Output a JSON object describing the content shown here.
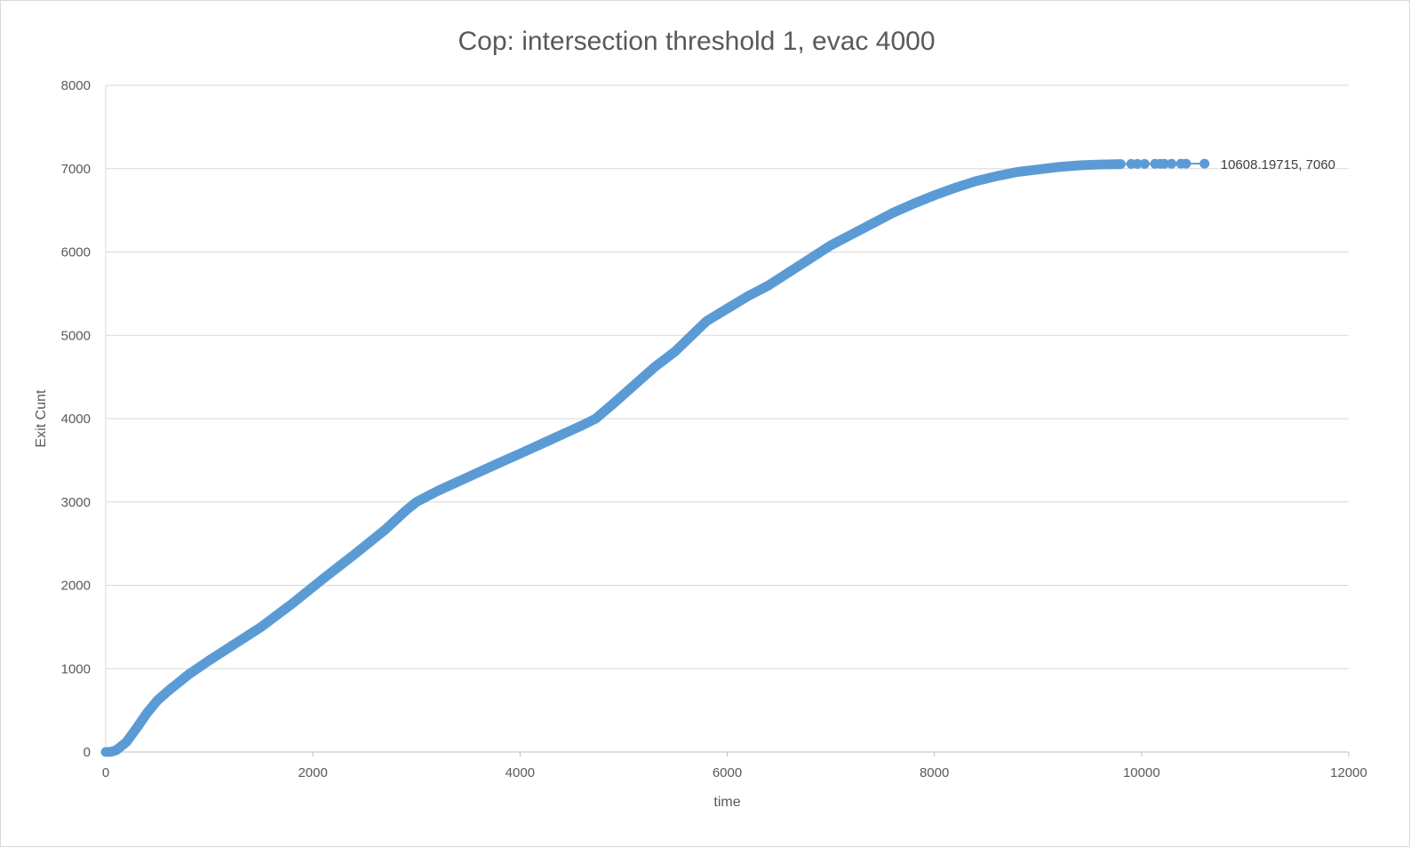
{
  "chart_data": {
    "type": "scatter",
    "title": "Cop: intersection threshold 1, evac 4000",
    "xlabel": "time",
    "ylabel": "Exit Cunt",
    "xlim": [
      0,
      12000
    ],
    "ylim": [
      0,
      8000
    ],
    "x_ticks": [
      0,
      2000,
      4000,
      6000,
      8000,
      10000,
      12000
    ],
    "y_ticks": [
      0,
      1000,
      2000,
      3000,
      4000,
      5000,
      6000,
      7000,
      8000
    ],
    "x_tick_labels": [
      "0",
      "2000",
      "4000",
      "6000",
      "8000",
      "10000",
      "12000"
    ],
    "y_tick_labels": [
      "0",
      "1000",
      "2000",
      "3000",
      "4000",
      "5000",
      "6000",
      "7000",
      "8000"
    ],
    "grid": "horizontal",
    "legend": "none",
    "marker_color": "#5b9bd5",
    "curve": [
      [
        0,
        0
      ],
      [
        50,
        2
      ],
      [
        100,
        20
      ],
      [
        200,
        120
      ],
      [
        300,
        290
      ],
      [
        400,
        470
      ],
      [
        500,
        620
      ],
      [
        600,
        730
      ],
      [
        800,
        930
      ],
      [
        1000,
        1100
      ],
      [
        1200,
        1260
      ],
      [
        1500,
        1500
      ],
      [
        1800,
        1780
      ],
      [
        2100,
        2080
      ],
      [
        2400,
        2370
      ],
      [
        2700,
        2670
      ],
      [
        2900,
        2900
      ],
      [
        3000,
        3000
      ],
      [
        3200,
        3130
      ],
      [
        3500,
        3300
      ],
      [
        3800,
        3470
      ],
      [
        4000,
        3580
      ],
      [
        4300,
        3750
      ],
      [
        4600,
        3920
      ],
      [
        4730,
        4000
      ],
      [
        4900,
        4180
      ],
      [
        5100,
        4400
      ],
      [
        5300,
        4620
      ],
      [
        5500,
        4810
      ],
      [
        5700,
        5050
      ],
      [
        5800,
        5170
      ],
      [
        6000,
        5320
      ],
      [
        6200,
        5470
      ],
      [
        6400,
        5600
      ],
      [
        6600,
        5760
      ],
      [
        6800,
        5920
      ],
      [
        7000,
        6080
      ],
      [
        7200,
        6210
      ],
      [
        7400,
        6340
      ],
      [
        7600,
        6470
      ],
      [
        7800,
        6580
      ],
      [
        8000,
        6680
      ],
      [
        8200,
        6770
      ],
      [
        8400,
        6850
      ],
      [
        8600,
        6910
      ],
      [
        8800,
        6960
      ],
      [
        9000,
        6990
      ],
      [
        9200,
        7020
      ],
      [
        9400,
        7040
      ],
      [
        9600,
        7050
      ],
      [
        9800,
        7055
      ]
    ],
    "tail_points": [
      [
        9900,
        7057
      ],
      [
        9960,
        7058
      ],
      [
        10030,
        7058
      ],
      [
        10130,
        7059
      ],
      [
        10180,
        7059
      ],
      [
        10220,
        7059
      ],
      [
        10290,
        7059
      ],
      [
        10380,
        7060
      ],
      [
        10430,
        7060
      ],
      [
        10608.19715,
        7060
      ]
    ],
    "annotation": {
      "text": "10608.19715, 7060",
      "x": 10608.19715,
      "y": 7060
    }
  }
}
